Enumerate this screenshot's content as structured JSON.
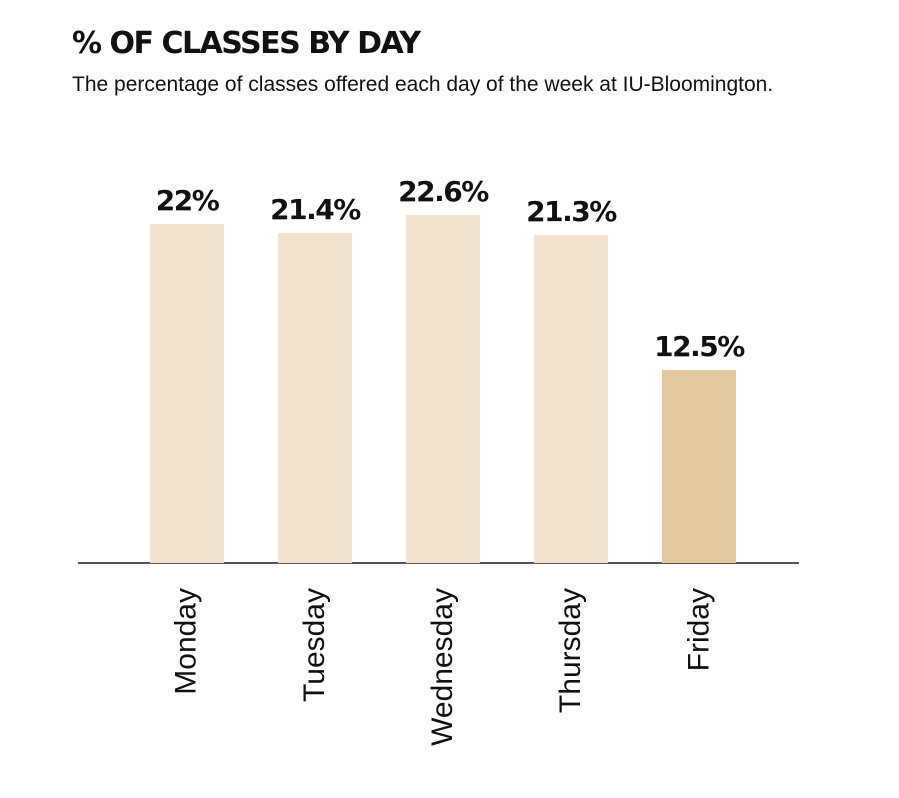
{
  "header": {
    "title": "% OF CLASSES BY DAY",
    "subtitle": "The percentage of classes offered each day of the week at IU-Bloomington."
  },
  "colors": {
    "bar_default": "#f2e4d1",
    "bar_highlight": "#e3c89f",
    "axis": "#555555",
    "text": "#111111"
  },
  "bars": [
    {
      "day": "Monday",
      "label": "22%",
      "value": 22.0
    },
    {
      "day": "Tuesday",
      "label": "21.4%",
      "value": 21.4
    },
    {
      "day": "Wednesday",
      "label": "22.6%",
      "value": 22.6
    },
    {
      "day": "Thursday",
      "label": "21.3%",
      "value": 21.3
    },
    {
      "day": "Friday",
      "label": "12.5%",
      "value": 12.5
    }
  ],
  "chart_data": {
    "type": "bar",
    "title": "% OF CLASSES BY DAY",
    "subtitle": "The percentage of classes offered each day of the week at IU-Bloomington.",
    "categories": [
      "Monday",
      "Tuesday",
      "Wednesday",
      "Thursday",
      "Friday"
    ],
    "values": [
      22,
      21.4,
      22.6,
      21.3,
      12.5
    ],
    "data_labels": [
      "22%",
      "21.4%",
      "22.6%",
      "21.3%",
      "12.5%"
    ],
    "xlabel": "",
    "ylabel": "",
    "ylim": [
      0,
      25
    ],
    "grid": false,
    "legend": null,
    "highlighted_category": "Friday"
  }
}
